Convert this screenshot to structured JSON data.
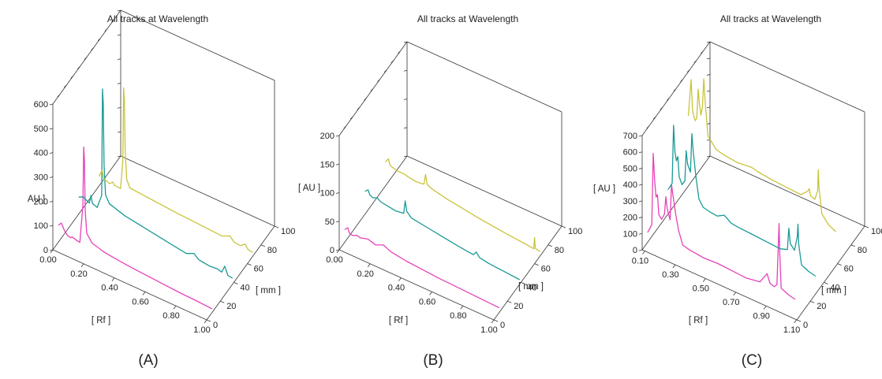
{
  "chart_data": [
    {
      "id": "A",
      "type": "line",
      "title": "All tracks at Wavelength",
      "panel_label": "(A)",
      "xlabel": "[ Rf ]",
      "ylabel": "AU ]",
      "zlabel": "[ mm ]",
      "xlim": [
        0.0,
        1.0
      ],
      "ylim": [
        0,
        600
      ],
      "zlim": [
        0,
        100
      ],
      "x_ticks": [
        "0.00",
        "0.20",
        "0.40",
        "0.60",
        "0.80",
        "1.00"
      ],
      "y_ticks": [
        "0",
        "100",
        "200",
        "300",
        "400",
        "500",
        "600"
      ],
      "z_ticks": [
        "0",
        "20",
        "40",
        "60",
        "80",
        "100"
      ],
      "series": [
        {
          "color": "#e642b8",
          "track_mm": 8,
          "points": [
            [
              0.0,
              70
            ],
            [
              0.02,
              85
            ],
            [
              0.04,
              60
            ],
            [
              0.06,
              45
            ],
            [
              0.08,
              42
            ],
            [
              0.09,
              48
            ],
            [
              0.1,
              46
            ],
            [
              0.12,
              42
            ],
            [
              0.14,
              40
            ],
            [
              0.16,
              200
            ],
            [
              0.165,
              440
            ],
            [
              0.17,
              390
            ],
            [
              0.175,
              180
            ],
            [
              0.185,
              90
            ],
            [
              0.22,
              60
            ],
            [
              0.3,
              45
            ],
            [
              0.4,
              38
            ],
            [
              0.5,
              32
            ],
            [
              0.6,
              28
            ],
            [
              0.7,
              24
            ],
            [
              0.8,
              20
            ],
            [
              0.9,
              18
            ],
            [
              1.0,
              15
            ]
          ]
        },
        {
          "color": "#1a9a96",
          "track_mm": 38,
          "points": [
            [
              0.0,
              70
            ],
            [
              0.03,
              80
            ],
            [
              0.05,
              72
            ],
            [
              0.07,
              66
            ],
            [
              0.08,
              100
            ],
            [
              0.09,
              70
            ],
            [
              0.12,
              62
            ],
            [
              0.15,
              120
            ],
            [
              0.155,
              560
            ],
            [
              0.16,
              500
            ],
            [
              0.165,
              250
            ],
            [
              0.175,
              130
            ],
            [
              0.2,
              100
            ],
            [
              0.3,
              80
            ],
            [
              0.4,
              70
            ],
            [
              0.5,
              60
            ],
            [
              0.6,
              50
            ],
            [
              0.7,
              40
            ],
            [
              0.75,
              55
            ],
            [
              0.78,
              38
            ],
            [
              0.85,
              32
            ],
            [
              0.9,
              35
            ],
            [
              0.93,
              30
            ],
            [
              0.95,
              60
            ],
            [
              0.97,
              28
            ],
            [
              1.0,
              25
            ]
          ]
        },
        {
          "color": "#c9c43a",
          "track_mm": 68,
          "points": [
            [
              0.0,
              40
            ],
            [
              0.02,
              70
            ],
            [
              0.03,
              40
            ],
            [
              0.05,
              34
            ],
            [
              0.07,
              30
            ],
            [
              0.09,
              42
            ],
            [
              0.1,
              32
            ],
            [
              0.14,
              30
            ],
            [
              0.155,
              150
            ],
            [
              0.16,
              450
            ],
            [
              0.165,
              400
            ],
            [
              0.17,
              200
            ],
            [
              0.18,
              80
            ],
            [
              0.2,
              50
            ],
            [
              0.3,
              45
            ],
            [
              0.4,
              40
            ],
            [
              0.5,
              35
            ],
            [
              0.6,
              32
            ],
            [
              0.7,
              28
            ],
            [
              0.8,
              25
            ],
            [
              0.85,
              40
            ],
            [
              0.88,
              22
            ],
            [
              0.92,
              20
            ],
            [
              0.95,
              35
            ],
            [
              0.97,
              18
            ],
            [
              1.0,
              15
            ]
          ]
        }
      ]
    },
    {
      "id": "B",
      "type": "line",
      "title": "All tracks at Wavelength",
      "panel_label": "(B)",
      "xlabel": "[ Rf ]",
      "ylabel": "[ AU ]",
      "zlabel": "[ mm ]",
      "xlim": [
        0.0,
        1.0
      ],
      "ylim": [
        0,
        200
      ],
      "zlim": [
        0,
        100
      ],
      "x_ticks": [
        "0.00",
        "0.20",
        "0.40",
        "0.60",
        "0.80",
        "1.00"
      ],
      "y_ticks": [
        "0",
        "50",
        "100",
        "150",
        "200"
      ],
      "z_ticks": [
        "0",
        "20",
        "40",
        "60",
        "80",
        "100"
      ],
      "series": [
        {
          "color": "#e642b8",
          "track_mm": 8,
          "points": [
            [
              0.0,
              22
            ],
            [
              0.02,
              28
            ],
            [
              0.03,
              20
            ],
            [
              0.05,
              18
            ],
            [
              0.08,
              22
            ],
            [
              0.1,
              20
            ],
            [
              0.15,
              24
            ],
            [
              0.2,
              20
            ],
            [
              0.25,
              26
            ],
            [
              0.3,
              20
            ],
            [
              0.4,
              16
            ],
            [
              0.5,
              14
            ],
            [
              0.6,
              12
            ],
            [
              0.7,
              11
            ],
            [
              0.8,
              10
            ],
            [
              0.9,
              9
            ],
            [
              1.0,
              8
            ]
          ]
        },
        {
          "color": "#1a9a96",
          "track_mm": 38,
          "points": [
            [
              0.0,
              40
            ],
            [
              0.02,
              45
            ],
            [
              0.03,
              38
            ],
            [
              0.05,
              35
            ],
            [
              0.08,
              38
            ],
            [
              0.1,
              34
            ],
            [
              0.15,
              32
            ],
            [
              0.2,
              30
            ],
            [
              0.25,
              32
            ],
            [
              0.26,
              55
            ],
            [
              0.27,
              38
            ],
            [
              0.3,
              30
            ],
            [
              0.4,
              26
            ],
            [
              0.5,
              22
            ],
            [
              0.6,
              18
            ],
            [
              0.7,
              15
            ],
            [
              0.72,
              22
            ],
            [
              0.74,
              15
            ],
            [
              0.8,
              12
            ],
            [
              0.9,
              10
            ],
            [
              1.0,
              8
            ]
          ]
        },
        {
          "color": "#c9c43a",
          "track_mm": 68,
          "points": [
            [
              0.0,
              42
            ],
            [
              0.02,
              50
            ],
            [
              0.03,
              40
            ],
            [
              0.05,
              38
            ],
            [
              0.08,
              36
            ],
            [
              0.12,
              36
            ],
            [
              0.15,
              34
            ],
            [
              0.2,
              32
            ],
            [
              0.25,
              34
            ],
            [
              0.26,
              52
            ],
            [
              0.27,
              36
            ],
            [
              0.3,
              32
            ],
            [
              0.4,
              26
            ],
            [
              0.5,
              22
            ],
            [
              0.6,
              18
            ],
            [
              0.7,
              15
            ],
            [
              0.8,
              12
            ],
            [
              0.9,
              10
            ],
            [
              0.96,
              8
            ],
            [
              0.965,
              28
            ],
            [
              0.97,
              10
            ],
            [
              1.0,
              8
            ]
          ]
        }
      ]
    },
    {
      "id": "C",
      "type": "line",
      "title": "All tracks at Wavelength",
      "panel_label": "(C)",
      "xlabel": "[ Rf ]",
      "ylabel": "[ AU ]",
      "zlabel": "[ mm ]",
      "xlim": [
        0.0,
        1.1
      ],
      "ylim": [
        0,
        700
      ],
      "zlim": [
        0,
        100
      ],
      "x_ticks": [
        "0.10",
        "0.30",
        "0.50",
        "0.70",
        "0.90",
        "1.10"
      ],
      "y_ticks": [
        "0",
        "100",
        "200",
        "300",
        "400",
        "500",
        "600",
        "700"
      ],
      "z_ticks": [
        "0",
        "20",
        "40",
        "60",
        "80",
        "100"
      ],
      "series": [
        {
          "color": "#e642b8",
          "track_mm": 8,
          "points": [
            [
              0.0,
              60
            ],
            [
              0.03,
              120
            ],
            [
              0.04,
              560
            ],
            [
              0.05,
              400
            ],
            [
              0.06,
              300
            ],
            [
              0.07,
              320
            ],
            [
              0.08,
              200
            ],
            [
              0.1,
              180
            ],
            [
              0.12,
              220
            ],
            [
              0.13,
              330
            ],
            [
              0.14,
              260
            ],
            [
              0.16,
              200
            ],
            [
              0.17,
              420
            ],
            [
              0.18,
              360
            ],
            [
              0.2,
              250
            ],
            [
              0.22,
              160
            ],
            [
              0.25,
              80
            ],
            [
              0.3,
              70
            ],
            [
              0.4,
              60
            ],
            [
              0.5,
              65
            ],
            [
              0.6,
              60
            ],
            [
              0.7,
              55
            ],
            [
              0.8,
              70
            ],
            [
              0.85,
              140
            ],
            [
              0.87,
              90
            ],
            [
              0.9,
              80
            ],
            [
              0.92,
              100
            ],
            [
              0.93,
              350
            ],
            [
              0.935,
              480
            ],
            [
              0.94,
              300
            ],
            [
              0.95,
              90
            ],
            [
              1.0,
              70
            ],
            [
              1.05,
              60
            ]
          ]
        },
        {
          "color": "#1a9a96",
          "track_mm": 38,
          "points": [
            [
              0.0,
              150
            ],
            [
              0.03,
              200
            ],
            [
              0.04,
              560
            ],
            [
              0.05,
              400
            ],
            [
              0.06,
              350
            ],
            [
              0.07,
              380
            ],
            [
              0.08,
              260
            ],
            [
              0.1,
              220
            ],
            [
              0.12,
              250
            ],
            [
              0.13,
              440
            ],
            [
              0.14,
              360
            ],
            [
              0.16,
              320
            ],
            [
              0.17,
              560
            ],
            [
              0.18,
              450
            ],
            [
              0.2,
              300
            ],
            [
              0.22,
              180
            ],
            [
              0.25,
              140
            ],
            [
              0.3,
              130
            ],
            [
              0.35,
              125
            ],
            [
              0.4,
              150
            ],
            [
              0.45,
              120
            ],
            [
              0.5,
              115
            ],
            [
              0.6,
              110
            ],
            [
              0.7,
              105
            ],
            [
              0.8,
              100
            ],
            [
              0.85,
              115
            ],
            [
              0.86,
              250
            ],
            [
              0.87,
              160
            ],
            [
              0.9,
              130
            ],
            [
              0.92,
              220
            ],
            [
              0.925,
              300
            ],
            [
              0.93,
              180
            ],
            [
              0.95,
              60
            ],
            [
              1.0,
              40
            ],
            [
              1.05,
              30
            ]
          ]
        },
        {
          "color": "#c9c43a",
          "track_mm": 68,
          "points": [
            [
              0.0,
              430
            ],
            [
              0.02,
              660
            ],
            [
              0.03,
              480
            ],
            [
              0.04,
              440
            ],
            [
              0.05,
              420
            ],
            [
              0.06,
              440
            ],
            [
              0.07,
              620
            ],
            [
              0.08,
              530
            ],
            [
              0.09,
              470
            ],
            [
              0.1,
              520
            ],
            [
              0.11,
              700
            ],
            [
              0.12,
              560
            ],
            [
              0.14,
              360
            ],
            [
              0.17,
              330
            ],
            [
              0.2,
              300
            ],
            [
              0.25,
              290
            ],
            [
              0.3,
              285
            ],
            [
              0.35,
              280
            ],
            [
              0.4,
              285
            ],
            [
              0.45,
              290
            ],
            [
              0.5,
              280
            ],
            [
              0.6,
              270
            ],
            [
              0.7,
              265
            ],
            [
              0.8,
              260
            ],
            [
              0.85,
              300
            ],
            [
              0.86,
              320
            ],
            [
              0.87,
              280
            ],
            [
              0.9,
              270
            ],
            [
              0.92,
              330
            ],
            [
              0.925,
              460
            ],
            [
              0.93,
              350
            ],
            [
              0.95,
              200
            ],
            [
              1.0,
              150
            ],
            [
              1.05,
              130
            ]
          ]
        }
      ]
    }
  ]
}
